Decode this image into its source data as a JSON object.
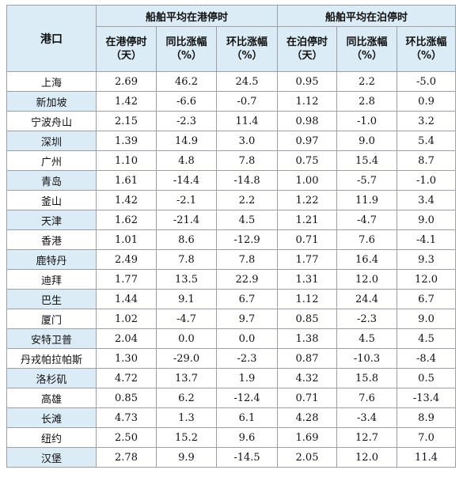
{
  "header": {
    "port": "港口",
    "group_port": "船舶平均在港停时",
    "group_berth": "船舶平均在泊停时",
    "cols": [
      {
        "line1": "在港停时",
        "line2": "（天）"
      },
      {
        "line1": "同比涨幅",
        "line2": "（%）"
      },
      {
        "line1": "环比涨幅",
        "line2": "（%）"
      },
      {
        "line1": "在泊停时",
        "line2": "（天）"
      },
      {
        "line1": "同比涨幅",
        "line2": "（%）"
      },
      {
        "line1": "环比涨幅",
        "line2": "（%）"
      }
    ]
  },
  "rows": [
    {
      "port": "上海",
      "values": [
        "2.69",
        "46.2",
        "24.5",
        "0.95",
        "2.2",
        "-5.0"
      ]
    },
    {
      "port": "新加坡",
      "values": [
        "1.42",
        "-6.6",
        "-0.7",
        "1.12",
        "2.8",
        "0.9"
      ]
    },
    {
      "port": "宁波舟山",
      "values": [
        "2.15",
        "-2.3",
        "11.4",
        "0.98",
        "-1.0",
        "3.2"
      ]
    },
    {
      "port": "深圳",
      "values": [
        "1.39",
        "14.9",
        "3.0",
        "0.97",
        "9.0",
        "5.4"
      ]
    },
    {
      "port": "广州",
      "values": [
        "1.10",
        "4.8",
        "7.8",
        "0.75",
        "15.4",
        "8.7"
      ]
    },
    {
      "port": "青岛",
      "values": [
        "1.61",
        "-14.4",
        "-14.8",
        "1.00",
        "-5.7",
        "-1.0"
      ]
    },
    {
      "port": "釜山",
      "values": [
        "1.42",
        "-2.1",
        "2.2",
        "1.22",
        "11.9",
        "3.4"
      ]
    },
    {
      "port": "天津",
      "values": [
        "1.62",
        "-21.4",
        "4.5",
        "1.21",
        "-4.7",
        "9.0"
      ]
    },
    {
      "port": "香港",
      "values": [
        "1.01",
        "8.6",
        "-12.9",
        "0.71",
        "7.6",
        "-4.1"
      ]
    },
    {
      "port": "鹿特丹",
      "values": [
        "2.49",
        "7.8",
        "7.8",
        "1.77",
        "16.4",
        "9.3"
      ]
    },
    {
      "port": "迪拜",
      "values": [
        "1.77",
        "13.5",
        "22.9",
        "1.31",
        "12.0",
        "12.0"
      ]
    },
    {
      "port": "巴生",
      "values": [
        "1.44",
        "9.1",
        "6.7",
        "1.12",
        "24.4",
        "6.7"
      ]
    },
    {
      "port": "厦门",
      "values": [
        "1.02",
        "-4.7",
        "9.7",
        "0.85",
        "-2.3",
        "9.0"
      ]
    },
    {
      "port": "安特卫普",
      "values": [
        "2.04",
        "0.0",
        "0.0",
        "1.38",
        "4.5",
        "4.5"
      ]
    },
    {
      "port": "丹戎帕拉帕斯",
      "values": [
        "1.30",
        "-29.0",
        "-2.3",
        "0.87",
        "-10.3",
        "-8.4"
      ]
    },
    {
      "port": "洛杉矶",
      "values": [
        "4.72",
        "13.7",
        "1.9",
        "4.32",
        "15.8",
        "0.5"
      ]
    },
    {
      "port": "高雄",
      "values": [
        "0.85",
        "6.2",
        "-12.4",
        "0.71",
        "7.6",
        "-13.4"
      ]
    },
    {
      "port": "长滩",
      "values": [
        "4.73",
        "1.3",
        "6.1",
        "4.28",
        "-3.4",
        "8.9"
      ]
    },
    {
      "port": "纽约",
      "values": [
        "2.50",
        "15.2",
        "9.6",
        "1.69",
        "12.7",
        "7.0"
      ]
    },
    {
      "port": "汉堡",
      "values": [
        "2.78",
        "9.9",
        "-14.5",
        "2.05",
        "12.0",
        "11.4"
      ]
    }
  ],
  "colors": {
    "header_bg": "#dcecf7",
    "border": "#9aa0a6"
  }
}
